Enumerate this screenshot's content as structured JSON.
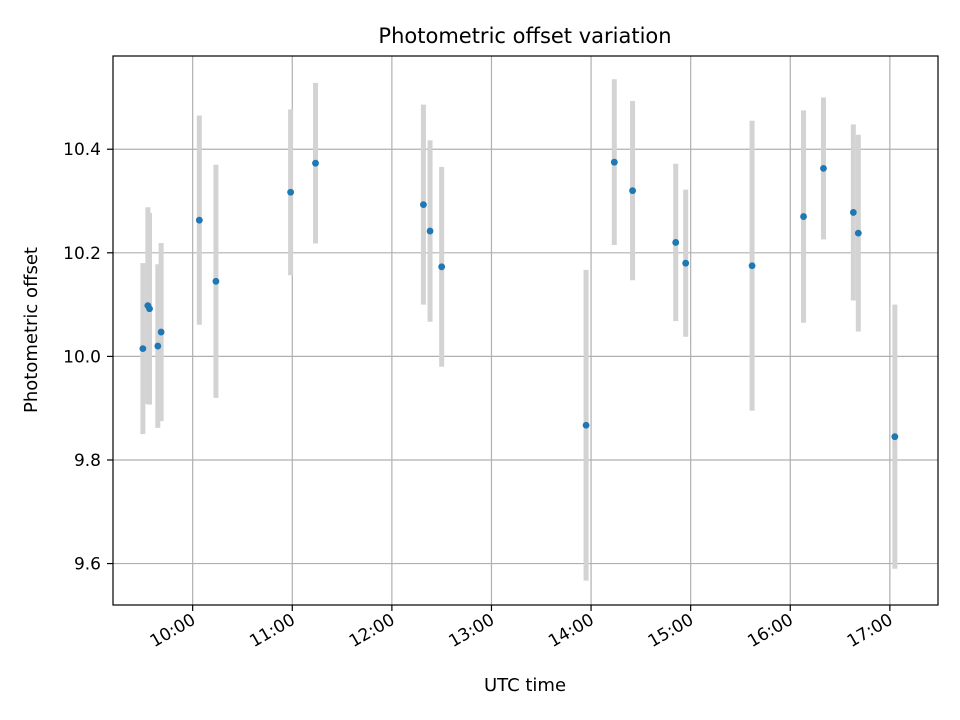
{
  "chart_data": {
    "type": "scatter",
    "title": "Photometric offset variation",
    "xlabel": "UTC time",
    "ylabel": "Photometric offset",
    "x_tick_labels": [
      "10:00",
      "11:00",
      "12:00",
      "13:00",
      "14:00",
      "15:00",
      "16:00",
      "17:00"
    ],
    "y_tick_labels": [
      "9.6",
      "9.8",
      "10.0",
      "10.2",
      "10.4"
    ],
    "xlim": [
      "09:12",
      "17:29"
    ],
    "ylim": [
      9.52,
      10.58
    ],
    "grid": true,
    "colors": {
      "marker": "#1f77b4",
      "errorbar": "#d3d3d3",
      "grid": "#b0b0b0"
    },
    "series": [
      {
        "points": [
          {
            "x": "09:30",
            "y": 10.015,
            "err": 0.165
          },
          {
            "x": "09:33",
            "y": 10.098,
            "err": 0.19
          },
          {
            "x": "09:34",
            "y": 10.092,
            "err": 0.185
          },
          {
            "x": "09:39",
            "y": 10.02,
            "err": 0.158
          },
          {
            "x": "09:41",
            "y": 10.047,
            "err": 0.172
          },
          {
            "x": "10:04",
            "y": 10.263,
            "err": 0.202
          },
          {
            "x": "10:14",
            "y": 10.145,
            "err": 0.225
          },
          {
            "x": "10:59",
            "y": 10.317,
            "err": 0.16
          },
          {
            "x": "11:14",
            "y": 10.373,
            "err": 0.155
          },
          {
            "x": "12:19",
            "y": 10.293,
            "err": 0.193
          },
          {
            "x": "12:23",
            "y": 10.242,
            "err": 0.175
          },
          {
            "x": "12:30",
            "y": 10.173,
            "err": 0.193
          },
          {
            "x": "13:57",
            "y": 9.867,
            "err": 0.3
          },
          {
            "x": "14:14",
            "y": 10.375,
            "err": 0.16
          },
          {
            "x": "14:25",
            "y": 10.32,
            "err": 0.173
          },
          {
            "x": "14:51",
            "y": 10.22,
            "err": 0.152
          },
          {
            "x": "14:57",
            "y": 10.18,
            "err": 0.142
          },
          {
            "x": "15:37",
            "y": 10.175,
            "err": 0.28
          },
          {
            "x": "16:08",
            "y": 10.27,
            "err": 0.205
          },
          {
            "x": "16:20",
            "y": 10.363,
            "err": 0.137
          },
          {
            "x": "16:38",
            "y": 10.278,
            "err": 0.17
          },
          {
            "x": "16:41",
            "y": 10.238,
            "err": 0.19
          },
          {
            "x": "17:03",
            "y": 9.845,
            "err": 0.255
          }
        ]
      }
    ]
  }
}
